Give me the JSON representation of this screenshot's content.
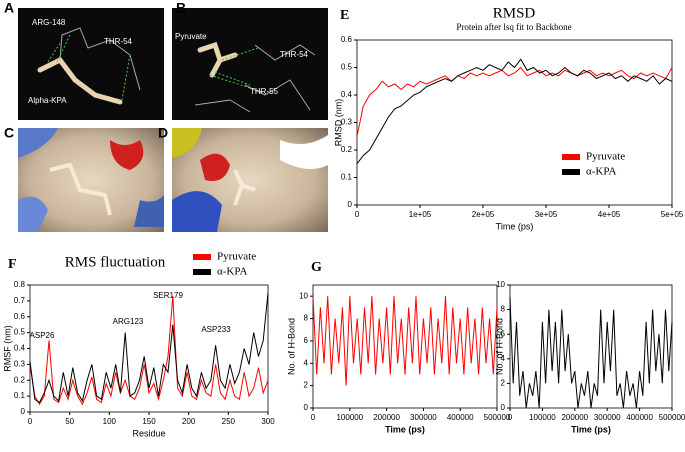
{
  "images": [
    {
      "letter": "A",
      "labels": [
        "ARG-148",
        "THR-54",
        "Alpha-KPA"
      ]
    },
    {
      "letter": "B",
      "labels": [
        "Pyruvate",
        "THR-54",
        "THR-55"
      ]
    },
    {
      "letter": "C",
      "labels": []
    },
    {
      "letter": "D",
      "labels": []
    }
  ],
  "chart_data": [
    {
      "type": "line",
      "panel_label": "E",
      "title": "RMSD",
      "subtitle": "Protein after lsq fit to Backbone",
      "x_label": "Time (ps)",
      "y_label": "RMSD (nm)",
      "legend": "lower right",
      "x": [
        0,
        10000,
        20000,
        30000,
        40000,
        50000,
        60000,
        70000,
        80000,
        90000,
        100000,
        110000,
        120000,
        130000,
        140000,
        150000,
        160000,
        170000,
        180000,
        190000,
        200000,
        210000,
        220000,
        230000,
        240000,
        250000,
        260000,
        270000,
        280000,
        290000,
        300000,
        310000,
        320000,
        330000,
        340000,
        350000,
        360000,
        370000,
        380000,
        390000,
        400000,
        410000,
        420000,
        430000,
        440000,
        450000,
        460000,
        470000,
        480000,
        490000,
        500000
      ],
      "series": [
        {
          "name": "Pyruvate",
          "color": "#ff0000",
          "values": [
            0.25,
            0.36,
            0.4,
            0.42,
            0.45,
            0.43,
            0.44,
            0.42,
            0.44,
            0.43,
            0.45,
            0.44,
            0.45,
            0.46,
            0.47,
            0.45,
            0.47,
            0.46,
            0.48,
            0.47,
            0.48,
            0.47,
            0.48,
            0.49,
            0.47,
            0.48,
            0.5,
            0.47,
            0.48,
            0.49,
            0.47,
            0.48,
            0.47,
            0.49,
            0.48,
            0.47,
            0.48,
            0.49,
            0.47,
            0.48,
            0.47,
            0.48,
            0.49,
            0.47,
            0.46,
            0.48,
            0.47,
            0.48,
            0.47,
            0.46,
            0.5
          ]
        },
        {
          "name": "α-KPA",
          "color": "#000000",
          "values": [
            0.15,
            0.18,
            0.2,
            0.24,
            0.28,
            0.32,
            0.35,
            0.36,
            0.38,
            0.4,
            0.41,
            0.43,
            0.44,
            0.45,
            0.46,
            0.45,
            0.47,
            0.48,
            0.49,
            0.5,
            0.49,
            0.51,
            0.5,
            0.49,
            0.52,
            0.5,
            0.53,
            0.49,
            0.5,
            0.48,
            0.49,
            0.47,
            0.48,
            0.5,
            0.48,
            0.47,
            0.49,
            0.48,
            0.46,
            0.47,
            0.48,
            0.46,
            0.47,
            0.45,
            0.47,
            0.46,
            0.45,
            0.47,
            0.44,
            0.46,
            0.45
          ]
        }
      ],
      "xlim": [
        0,
        500000
      ],
      "xticks": [
        0,
        {
          "value": 100000,
          "label": "1e+05"
        },
        {
          "value": 200000,
          "label": "2e+05"
        },
        {
          "value": 300000,
          "label": "3e+05"
        },
        {
          "value": 400000,
          "label": "4e+05"
        },
        {
          "value": 500000,
          "label": "5e+05"
        }
      ],
      "ylim": [
        0,
        0.6
      ],
      "yticks": [
        0,
        0.1,
        0.2,
        0.3,
        0.4,
        0.5,
        0.6
      ]
    },
    {
      "type": "line",
      "panel_label": "F",
      "title": "RMS fluctuation",
      "x_label": "Residue",
      "y_label": "RMSF (nm)",
      "legend": "above right",
      "annotations": [
        "ASP26",
        "ARG123",
        "SER179",
        "ASP233"
      ],
      "x": [
        0,
        6,
        12,
        18,
        24,
        30,
        36,
        42,
        48,
        54,
        60,
        66,
        72,
        78,
        84,
        90,
        96,
        102,
        108,
        114,
        120,
        126,
        132,
        138,
        144,
        150,
        156,
        162,
        168,
        174,
        180,
        186,
        192,
        198,
        204,
        210,
        216,
        222,
        228,
        234,
        240,
        246,
        252,
        258,
        264,
        270,
        276,
        282,
        288,
        294,
        300
      ],
      "series": [
        {
          "name": "Pyruvate",
          "color": "#ff0000",
          "values": [
            0.3,
            0.1,
            0.05,
            0.1,
            0.45,
            0.08,
            0.06,
            0.15,
            0.08,
            0.2,
            0.1,
            0.05,
            0.12,
            0.22,
            0.08,
            0.06,
            0.18,
            0.1,
            0.25,
            0.12,
            0.2,
            0.1,
            0.08,
            0.15,
            0.3,
            0.12,
            0.18,
            0.08,
            0.2,
            0.35,
            0.73,
            0.15,
            0.1,
            0.25,
            0.1,
            0.08,
            0.2,
            0.12,
            0.1,
            0.3,
            0.12,
            0.08,
            0.2,
            0.1,
            0.08,
            0.25,
            0.1,
            0.15,
            0.28,
            0.12,
            0.2
          ]
        },
        {
          "name": "α-KPA",
          "color": "#000000",
          "values": [
            0.32,
            0.08,
            0.06,
            0.12,
            0.2,
            0.1,
            0.07,
            0.25,
            0.1,
            0.28,
            0.12,
            0.07,
            0.2,
            0.3,
            0.1,
            0.08,
            0.25,
            0.15,
            0.3,
            0.12,
            0.5,
            0.1,
            0.12,
            0.2,
            0.35,
            0.15,
            0.28,
            0.1,
            0.3,
            0.25,
            0.55,
            0.2,
            0.12,
            0.3,
            0.15,
            0.1,
            0.25,
            0.15,
            0.2,
            0.42,
            0.2,
            0.15,
            0.3,
            0.18,
            0.25,
            0.4,
            0.3,
            0.5,
            0.35,
            0.45,
            0.75
          ]
        }
      ],
      "xlim": [
        0,
        300
      ],
      "xticks": [
        0,
        50,
        100,
        150,
        200,
        250,
        300
      ],
      "ylim": [
        0,
        0.8
      ],
      "yticks": [
        0,
        0.1,
        0.2,
        0.3,
        0.4,
        0.5,
        0.6,
        0.7,
        0.8
      ]
    },
    {
      "type": "line",
      "panel_label": "G",
      "x_label": "Time (ps)",
      "y_label": "No. of H-Bond",
      "x": [
        0,
        10000,
        20000,
        30000,
        40000,
        50000,
        60000,
        70000,
        80000,
        90000,
        100000,
        110000,
        120000,
        130000,
        140000,
        150000,
        160000,
        170000,
        180000,
        190000,
        200000,
        210000,
        220000,
        230000,
        240000,
        250000,
        260000,
        270000,
        280000,
        290000,
        300000,
        310000,
        320000,
        330000,
        340000,
        350000,
        360000,
        370000,
        380000,
        390000,
        400000,
        410000,
        420000,
        430000,
        440000,
        450000,
        460000,
        470000,
        480000,
        490000,
        500000
      ],
      "series": [
        {
          "name": null,
          "color": "#ff0000",
          "values": [
            10,
            3,
            9,
            4,
            10,
            3,
            8,
            4,
            9,
            2,
            10,
            4,
            8,
            3,
            9,
            4,
            10,
            3,
            8,
            4,
            9,
            3,
            10,
            4,
            8,
            3,
            9,
            4,
            10,
            3,
            8,
            4,
            9,
            3,
            8,
            4,
            10,
            3,
            9,
            4,
            8,
            3,
            9,
            4,
            8,
            3,
            9,
            4,
            8,
            3,
            9
          ]
        }
      ],
      "xlim": [
        0,
        500000
      ],
      "xticks": [
        0,
        100000,
        200000,
        300000,
        400000,
        500000
      ],
      "ylim": [
        0,
        11
      ],
      "yticks": [
        0,
        2,
        4,
        6,
        8,
        10
      ]
    },
    {
      "type": "line",
      "x_label": "Time (ps)",
      "y_label": "No. of H-Bond",
      "x": [
        0,
        10000,
        20000,
        30000,
        40000,
        50000,
        60000,
        70000,
        80000,
        90000,
        100000,
        110000,
        120000,
        130000,
        140000,
        150000,
        160000,
        170000,
        180000,
        190000,
        200000,
        210000,
        220000,
        230000,
        240000,
        250000,
        260000,
        270000,
        280000,
        290000,
        300000,
        310000,
        320000,
        330000,
        340000,
        350000,
        360000,
        370000,
        380000,
        390000,
        400000,
        410000,
        420000,
        430000,
        440000,
        450000,
        460000,
        470000,
        480000,
        490000,
        500000
      ],
      "series": [
        {
          "name": null,
          "color": "#000000",
          "values": [
            9,
            2,
            7,
            1,
            3,
            0,
            2,
            1,
            3,
            0,
            7,
            2,
            8,
            3,
            7,
            2,
            8,
            3,
            6,
            2,
            3,
            0,
            2,
            1,
            3,
            0,
            2,
            1,
            8,
            2,
            7,
            3,
            8,
            1,
            2,
            0,
            3,
            1,
            2,
            0,
            3,
            1,
            7,
            2,
            8,
            3,
            6,
            2,
            8,
            3,
            7
          ]
        }
      ],
      "xlim": [
        0,
        500000
      ],
      "xticks": [
        0,
        100000,
        200000,
        300000,
        400000,
        500000
      ],
      "ylim": [
        0,
        10
      ],
      "yticks": [
        0,
        2,
        4,
        6,
        8,
        10
      ]
    }
  ]
}
